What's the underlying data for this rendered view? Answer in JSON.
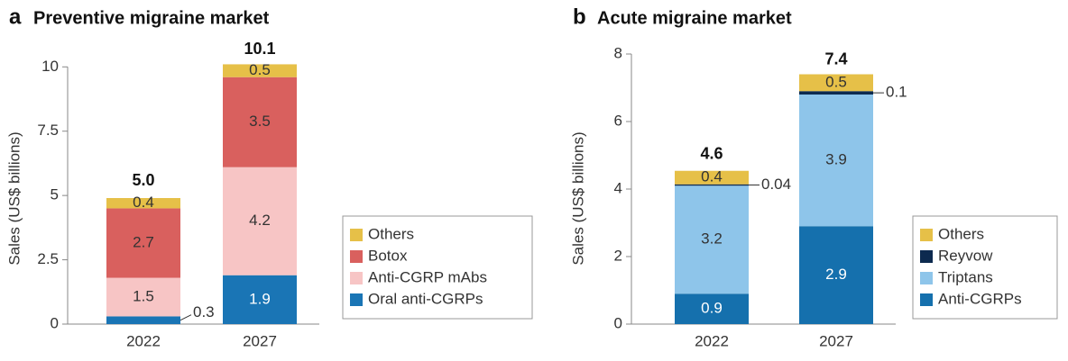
{
  "chart_data": [
    {
      "type": "bar",
      "stacked": true,
      "panel": "a",
      "title": "Preventive migraine market",
      "y_label": "Sales (US$ billions)",
      "categories": [
        "2022",
        "2027"
      ],
      "series": [
        {
          "name": "Oral anti-CGRPs",
          "color": "#1a75b5",
          "values": [
            0.3,
            1.9
          ]
        },
        {
          "name": "Anti-CGRP mAbs",
          "color": "#f7c5c5",
          "values": [
            1.5,
            4.2
          ]
        },
        {
          "name": "Botox",
          "color": "#d9605e",
          "values": [
            2.7,
            3.5
          ]
        },
        {
          "name": "Others",
          "color": "#e6c048",
          "values": [
            0.4,
            0.5
          ]
        }
      ],
      "totals": [
        5.0,
        10.1
      ],
      "total_labels": [
        "5.0",
        "10.1"
      ],
      "ylim": [
        0,
        10.5
      ],
      "yticks": [
        0,
        2.5,
        5,
        7.5,
        10
      ]
    },
    {
      "type": "bar",
      "stacked": true,
      "panel": "b",
      "title": "Acute migraine market",
      "y_label": "Sales (US$ billions)",
      "categories": [
        "2022",
        "2027"
      ],
      "series": [
        {
          "name": "Anti-CGRPs",
          "color": "#1570ad",
          "values": [
            0.9,
            2.9
          ]
        },
        {
          "name": "Triptans",
          "color": "#8ec5ea",
          "values": [
            3.2,
            3.9
          ]
        },
        {
          "name": "Reyvow",
          "color": "#0d2a4f",
          "values": [
            0.04,
            0.1
          ]
        },
        {
          "name": "Others",
          "color": "#e6c048",
          "values": [
            0.4,
            0.5
          ]
        }
      ],
      "totals": [
        4.6,
        7.4
      ],
      "ylim": [
        0,
        8
      ],
      "yticks": [
        0,
        2,
        4,
        6,
        8
      ]
    }
  ]
}
